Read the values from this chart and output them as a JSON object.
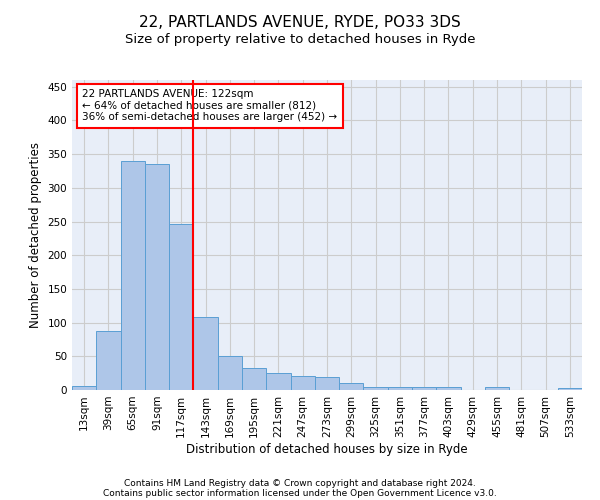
{
  "title1": "22, PARTLANDS AVENUE, RYDE, PO33 3DS",
  "title2": "Size of property relative to detached houses in Ryde",
  "xlabel": "Distribution of detached houses by size in Ryde",
  "ylabel": "Number of detached properties",
  "categories": [
    "13sqm",
    "39sqm",
    "65sqm",
    "91sqm",
    "117sqm",
    "143sqm",
    "169sqm",
    "195sqm",
    "221sqm",
    "247sqm",
    "273sqm",
    "299sqm",
    "325sqm",
    "351sqm",
    "377sqm",
    "403sqm",
    "429sqm",
    "455sqm",
    "481sqm",
    "507sqm",
    "533sqm"
  ],
  "values": [
    6,
    88,
    340,
    335,
    246,
    109,
    50,
    33,
    25,
    21,
    20,
    10,
    5,
    5,
    4,
    4,
    0,
    4,
    0,
    0,
    3
  ],
  "bar_color": "#aec6e8",
  "bar_edge_color": "#5a9fd4",
  "vline_x": 4.5,
  "vline_color": "red",
  "annotation_text": "22 PARTLANDS AVENUE: 122sqm\n← 64% of detached houses are smaller (812)\n36% of semi-detached houses are larger (452) →",
  "annotation_box_color": "white",
  "annotation_box_edge": "red",
  "ylim": [
    0,
    460
  ],
  "yticks": [
    0,
    50,
    100,
    150,
    200,
    250,
    300,
    350,
    400,
    450
  ],
  "grid_color": "#cccccc",
  "bg_color": "#e8eef8",
  "footer1": "Contains HM Land Registry data © Crown copyright and database right 2024.",
  "footer2": "Contains public sector information licensed under the Open Government Licence v3.0.",
  "title1_fontsize": 11,
  "title2_fontsize": 9.5,
  "tick_fontsize": 7.5,
  "label_fontsize": 8.5,
  "footer_fontsize": 6.5,
  "ann_fontsize": 7.5
}
